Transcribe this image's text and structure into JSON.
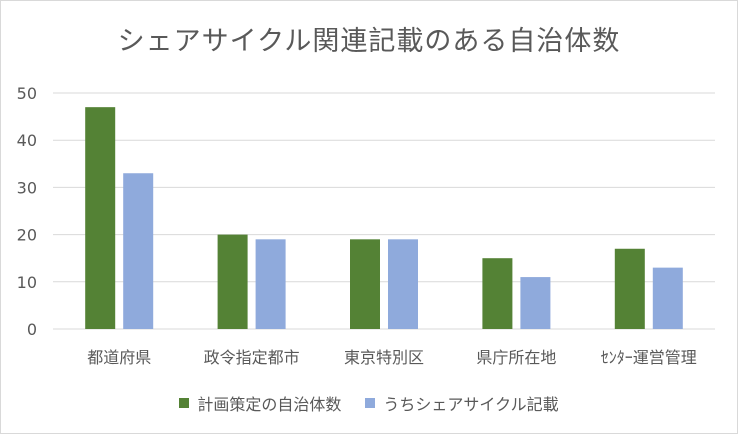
{
  "chart_data": {
    "type": "bar",
    "title": "シェアサイクル関連記載のある自治体数",
    "categories": [
      "都道府県",
      "政令指定都市",
      "東京特別区",
      "県庁所在地",
      "ｾﾝﾀｰ運営管理"
    ],
    "series": [
      {
        "name": "計画策定の自治体数",
        "values": [
          47,
          20,
          19,
          15,
          17
        ],
        "color": "#548235"
      },
      {
        "name": "うちシェアサイクル記載",
        "values": [
          33,
          19,
          19,
          11,
          13
        ],
        "color": "#8faadc"
      }
    ],
    "ylim": [
      0,
      50
    ],
    "yticks": [
      0,
      10,
      20,
      30,
      40,
      50
    ],
    "xlabel": "",
    "ylabel": "",
    "grid": true,
    "legend_position": "bottom",
    "colors": {
      "grid": "#d9d9d9",
      "text": "#595959"
    }
  }
}
